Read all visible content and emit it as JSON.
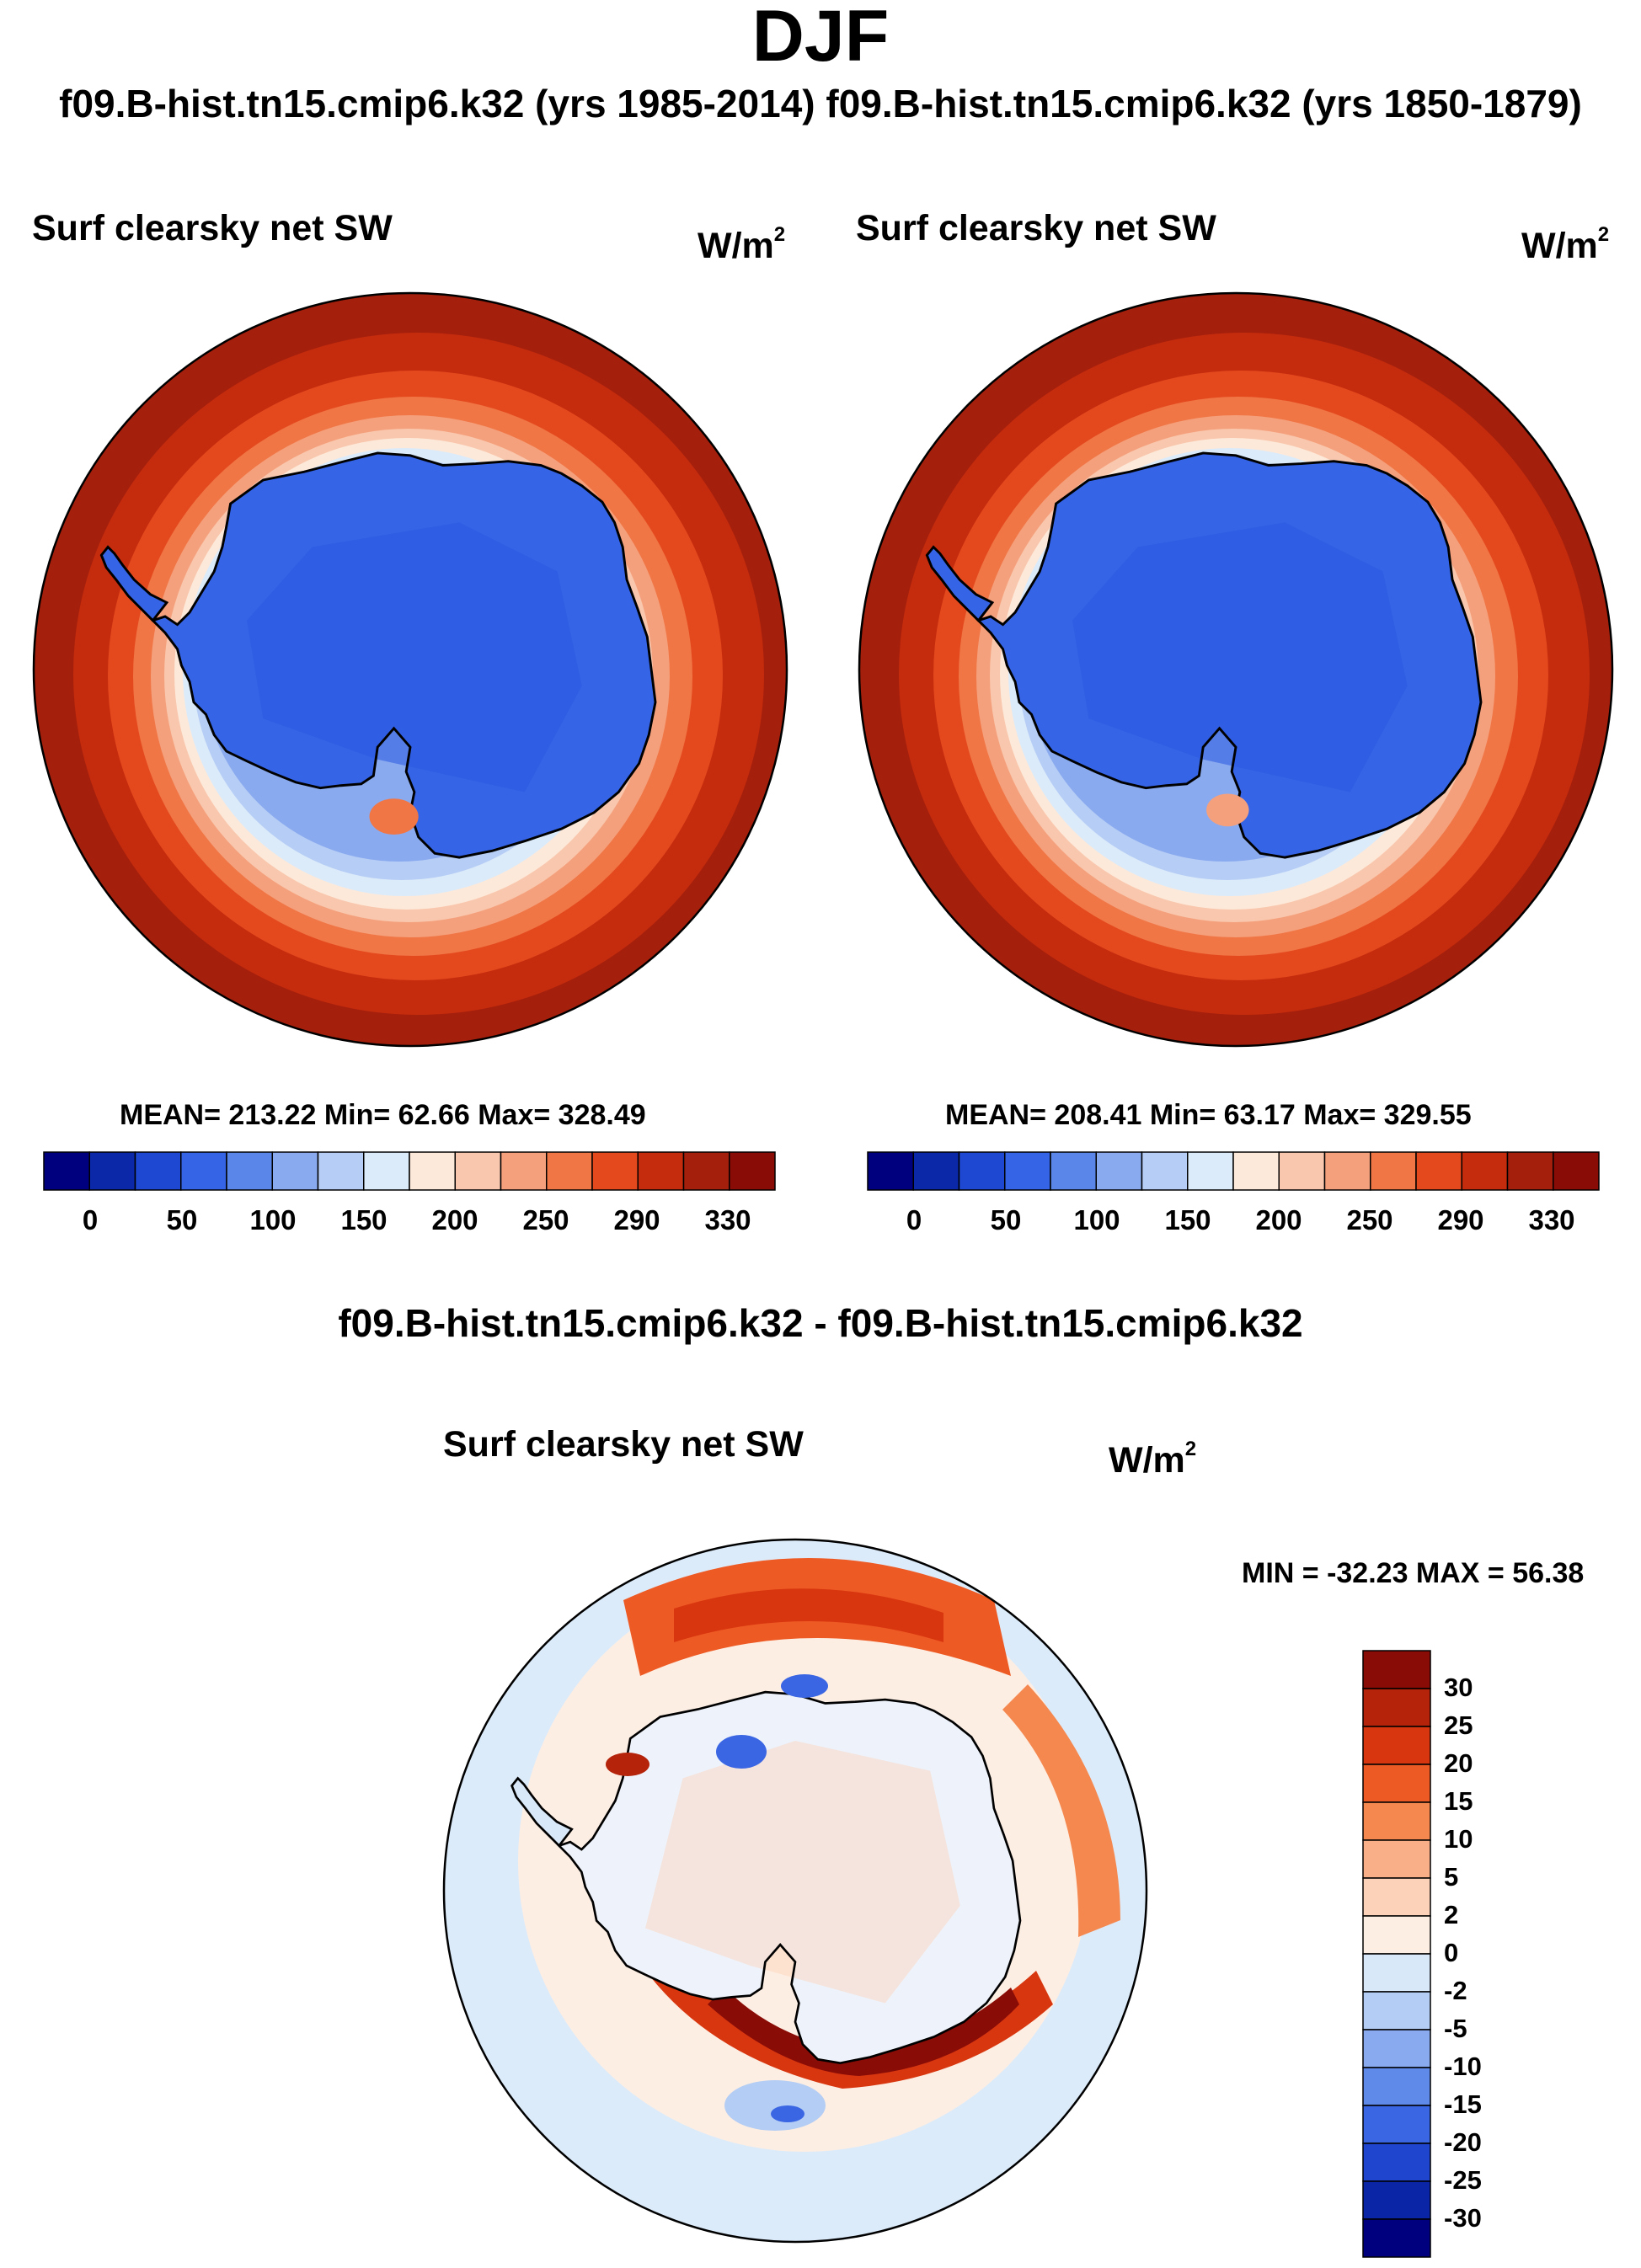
{
  "header": {
    "title": "DJF",
    "subtitle": "f09.B-hist.tn15.cmip6.k32 (yrs 1985-2014) f09.B-hist.tn15.cmip6.k32 (yrs 1850-1879)"
  },
  "panels": [
    {
      "title": "Surf clearsky net SW",
      "units": "W/m",
      "units_sup": "2",
      "stats": "MEAN= 213.22  Min=  62.66  Max= 328.49",
      "colorbar_labels": [
        "0",
        "50",
        "100",
        "150",
        "200",
        "250",
        "290",
        "330"
      ]
    },
    {
      "title": "Surf clearsky net SW",
      "units": "W/m",
      "units_sup": "2",
      "stats": "MEAN= 208.41  Min=  63.17  Max= 329.55",
      "colorbar_labels": [
        "0",
        "50",
        "100",
        "150",
        "200",
        "250",
        "290",
        "330"
      ]
    }
  ],
  "difference": {
    "title": "f09.B-hist.tn15.cmip6.k32 - f09.B-hist.tn15.cmip6.k32",
    "panel_title": "Surf clearsky net SW",
    "units": "W/m",
    "units_sup": "2",
    "stats": "MIN = -32.23 MAX =  56.38",
    "colorbar_labels": [
      "30",
      "25",
      "20",
      "15",
      "10",
      "5",
      "2",
      "0",
      "-2",
      "-5",
      "-10",
      "-15",
      "-20",
      "-25",
      "-30"
    ]
  },
  "colors": {
    "main_scale": [
      "#00007f",
      "#0a28a8",
      "#1f48d2",
      "#3564e6",
      "#5a86ea",
      "#8aaaef",
      "#b6cdf5",
      "#dcebfa",
      "#fde9d9",
      "#f9c7ad",
      "#f5a07c",
      "#f07646",
      "#e4491e",
      "#c52c0d",
      "#a51f0d",
      "#8a0c07"
    ],
    "diff_scale": [
      "#8a0c07",
      "#b4230a",
      "#d8360f",
      "#ee5a24",
      "#f5884f",
      "#f9b088",
      "#fcd2b8",
      "#fdeee3",
      "#d9e8f8",
      "#b4cdf4",
      "#8aaaef",
      "#5f8ae9",
      "#3a66e3",
      "#1f45cf",
      "#0a25a6",
      "#00007f"
    ]
  }
}
